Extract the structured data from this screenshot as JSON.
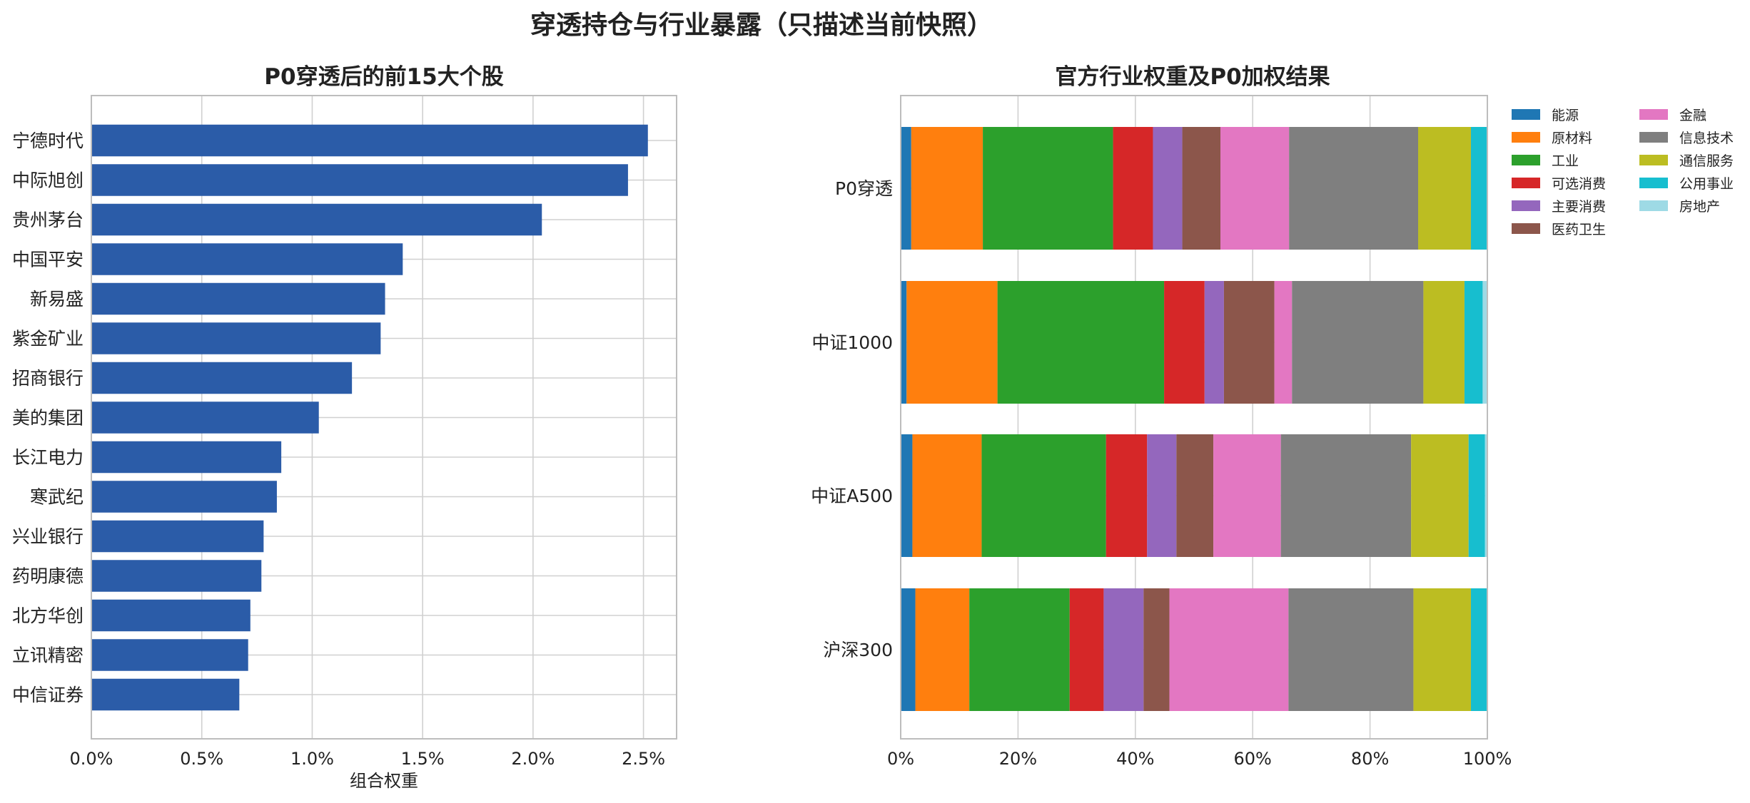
{
  "figure_title": "穿透持仓与行业暴露（只描述当前快照）",
  "chart_data": [
    {
      "type": "bar",
      "orientation": "horizontal",
      "title": "P0穿透后的前15大个股",
      "xlabel": "组合权重",
      "ylabel": "",
      "xlim": [
        0,
        0.0265
      ],
      "xticks": [
        0,
        0.005,
        0.01,
        0.015,
        0.02,
        0.025
      ],
      "xtick_labels": [
        "0.0%",
        "0.5%",
        "1.0%",
        "1.5%",
        "2.0%",
        "2.5%"
      ],
      "grid": true,
      "color": "#2b5ca8",
      "categories": [
        "宁德时代",
        "中际旭创",
        "贵州茅台",
        "中国平安",
        "新易盛",
        "紫金矿业",
        "招商银行",
        "美的集团",
        "长江电力",
        "寒武纪",
        "兴业银行",
        "药明康德",
        "北方华创",
        "立讯精密",
        "中信证券"
      ],
      "values": [
        0.0252,
        0.0243,
        0.0204,
        0.0141,
        0.0133,
        0.0131,
        0.0118,
        0.0103,
        0.0086,
        0.0084,
        0.0078,
        0.0077,
        0.0072,
        0.0071,
        0.0067
      ]
    },
    {
      "type": "bar",
      "orientation": "horizontal",
      "stacked": true,
      "title": "官方行业权重及P0加权结果",
      "xlabel": "",
      "ylabel": "",
      "xlim": [
        0,
        1
      ],
      "xticks": [
        0,
        0.2,
        0.4,
        0.6,
        0.8,
        1.0
      ],
      "xtick_labels": [
        "0%",
        "20%",
        "40%",
        "60%",
        "80%",
        "100%"
      ],
      "grid": true,
      "legend_placement": "right, outside plot, 2 columns",
      "categories": [
        "P0穿透",
        "中证1000",
        "中证A500",
        "沪深300"
      ],
      "series": [
        {
          "name": "能源",
          "color": "#1f77b4",
          "values": [
            0.018,
            0.01,
            0.02,
            0.025
          ]
        },
        {
          "name": "原材料",
          "color": "#ff7f0e",
          "values": [
            0.122,
            0.155,
            0.118,
            0.092
          ]
        },
        {
          "name": "工业",
          "color": "#2ca02c",
          "values": [
            0.222,
            0.284,
            0.212,
            0.171
          ]
        },
        {
          "name": "可选消费",
          "color": "#d62728",
          "values": [
            0.068,
            0.069,
            0.07,
            0.058
          ]
        },
        {
          "name": "主要消费",
          "color": "#9467bd",
          "values": [
            0.05,
            0.033,
            0.05,
            0.068
          ]
        },
        {
          "name": "医药卫生",
          "color": "#8c564b",
          "values": [
            0.065,
            0.086,
            0.063,
            0.044
          ]
        },
        {
          "name": "金融",
          "color": "#e377c2",
          "values": [
            0.117,
            0.03,
            0.115,
            0.203
          ]
        },
        {
          "name": "信息技术",
          "color": "#7f7f7f",
          "values": [
            0.22,
            0.224,
            0.222,
            0.213
          ]
        },
        {
          "name": "通信服务",
          "color": "#bcbd22",
          "values": [
            0.09,
            0.07,
            0.098,
            0.098
          ]
        },
        {
          "name": "公用事业",
          "color": "#17becf",
          "values": [
            0.028,
            0.031,
            0.028,
            0.03
          ]
        },
        {
          "name": "房地产",
          "color": "#9edae5",
          "values": [
            0.0,
            0.008,
            0.004,
            0.0
          ]
        }
      ]
    }
  ]
}
